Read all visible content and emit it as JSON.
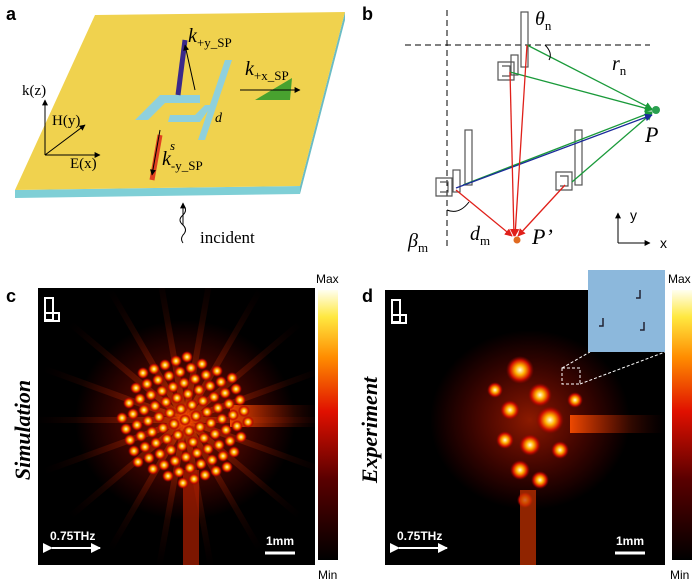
{
  "panel_labels": [
    "a",
    "b",
    "c",
    "d"
  ],
  "panel_a": {
    "k_z": "k(z)",
    "h_y": "H(y)",
    "e_x": "E(x)",
    "k_plus_y": {
      "symbol": "k",
      "sub": "+y_SP"
    },
    "k_plus_x": {
      "symbol": "k",
      "sub": "+x_SP"
    },
    "k_minus_y": {
      "symbol": "k",
      "sub": "-y_SP"
    },
    "d": "d",
    "s": "s",
    "incident": "incident"
  },
  "panel_b": {
    "theta_n": {
      "symbol": "θ",
      "sub": "n"
    },
    "r_n": {
      "symbol": "r",
      "sub": "n"
    },
    "P": "P",
    "P_prime": "P’",
    "beta_m": {
      "symbol": "β",
      "sub": "m"
    },
    "d_m": {
      "symbol": "d",
      "sub": "m"
    },
    "axis_y": "y",
    "axis_x": "x"
  },
  "panel_c": {
    "title": "Simulation",
    "max": "Max",
    "min": "Min",
    "frequency": "0.75THz",
    "scale_bar": "1mm"
  },
  "panel_d": {
    "title": "Experiment",
    "max": "Max",
    "min": "Min",
    "frequency": "0.75THz",
    "scale_bar": "1mm"
  }
}
